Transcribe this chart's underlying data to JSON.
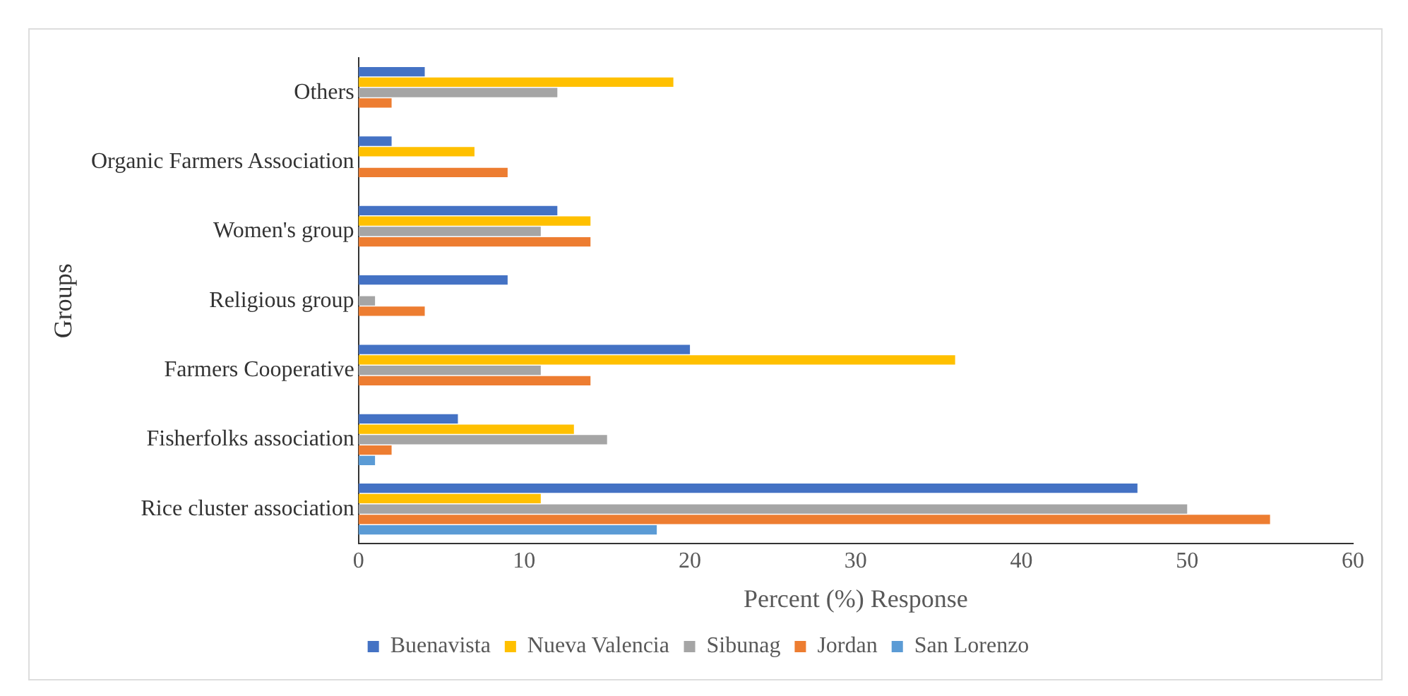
{
  "chart_data": {
    "type": "bar",
    "orientation": "horizontal",
    "xlabel": "Percent (%) Response",
    "ylabel": "Groups",
    "categories": [
      "Others",
      "Organic Farmers Association",
      "Women's group",
      "Religious group",
      "Farmers Cooperative",
      "Fisherfolks association",
      "Rice cluster association"
    ],
    "series": [
      {
        "name": "Buenavista",
        "color": "#4472c4",
        "values": [
          4,
          2,
          12,
          9,
          20,
          6,
          47
        ]
      },
      {
        "name": "Nueva Valencia",
        "color": "#ffc000",
        "values": [
          19,
          7,
          14,
          0,
          36,
          13,
          11
        ]
      },
      {
        "name": "Sibunag",
        "color": "#a5a5a5",
        "values": [
          12,
          0,
          11,
          1,
          11,
          15,
          50
        ]
      },
      {
        "name": "Jordan",
        "color": "#ed7d31",
        "values": [
          2,
          9,
          14,
          4,
          14,
          2,
          55
        ]
      },
      {
        "name": "San Lorenzo",
        "color": "#5b9bd5",
        "values": [
          0,
          0,
          0,
          0,
          0,
          1,
          18
        ]
      }
    ],
    "xlim": [
      0,
      60
    ],
    "xticks": [
      0,
      10,
      20,
      30,
      40,
      50,
      60
    ],
    "grid": false,
    "legend": "bottom"
  }
}
